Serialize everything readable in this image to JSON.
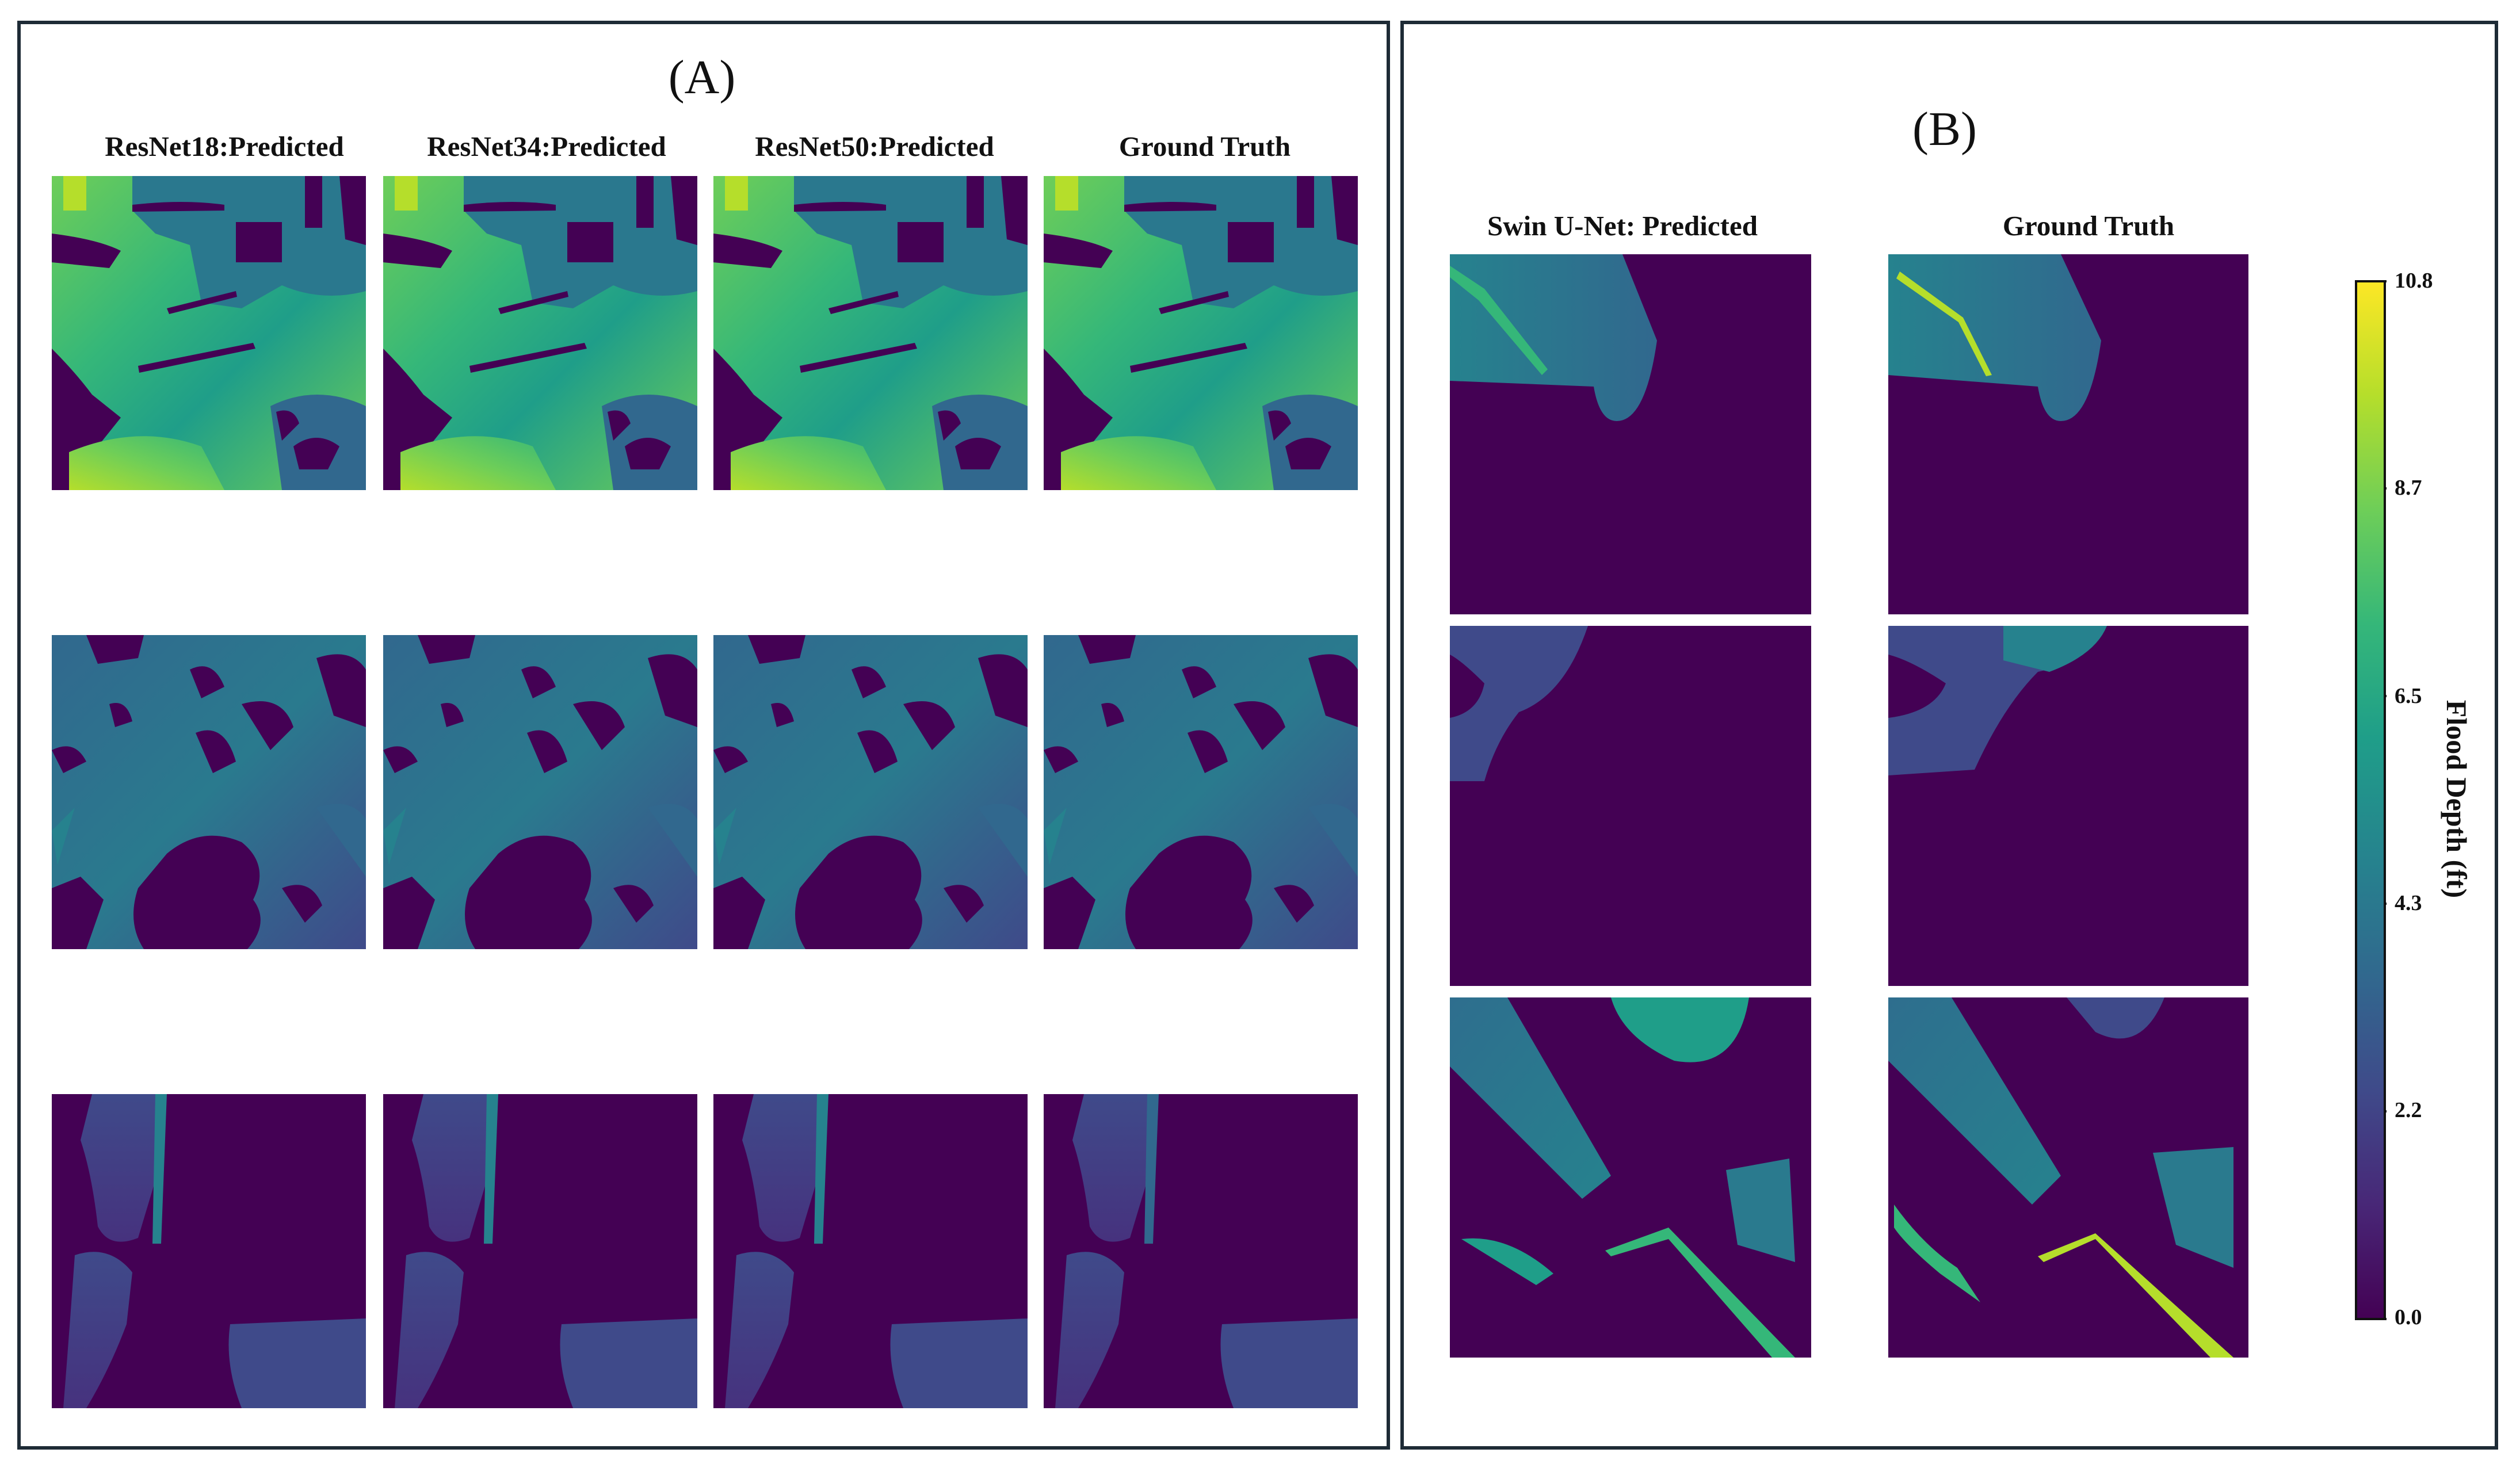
{
  "panel_a": {
    "label": "(A)",
    "columns": [
      "ResNet18:Predicted",
      "ResNet34:Predicted",
      "ResNet50:Predicted",
      "Ground Truth"
    ]
  },
  "panel_b": {
    "label": "(B)",
    "columns": [
      "Swin U-Net: Predicted",
      "Ground Truth"
    ]
  },
  "colorbar": {
    "label": "Flood Depth (ft)",
    "min": 0.0,
    "max": 10.8,
    "ticks": [
      "10.8",
      "8.7",
      "6.5",
      "4.3",
      "2.2",
      "0.0"
    ],
    "colormap": "viridis",
    "stops": [
      "#440154",
      "#482777",
      "#3f4a8a",
      "#31688e",
      "#26828e",
      "#1f9e89",
      "#35b779",
      "#6ece58",
      "#b5de2b",
      "#fde725"
    ]
  }
}
